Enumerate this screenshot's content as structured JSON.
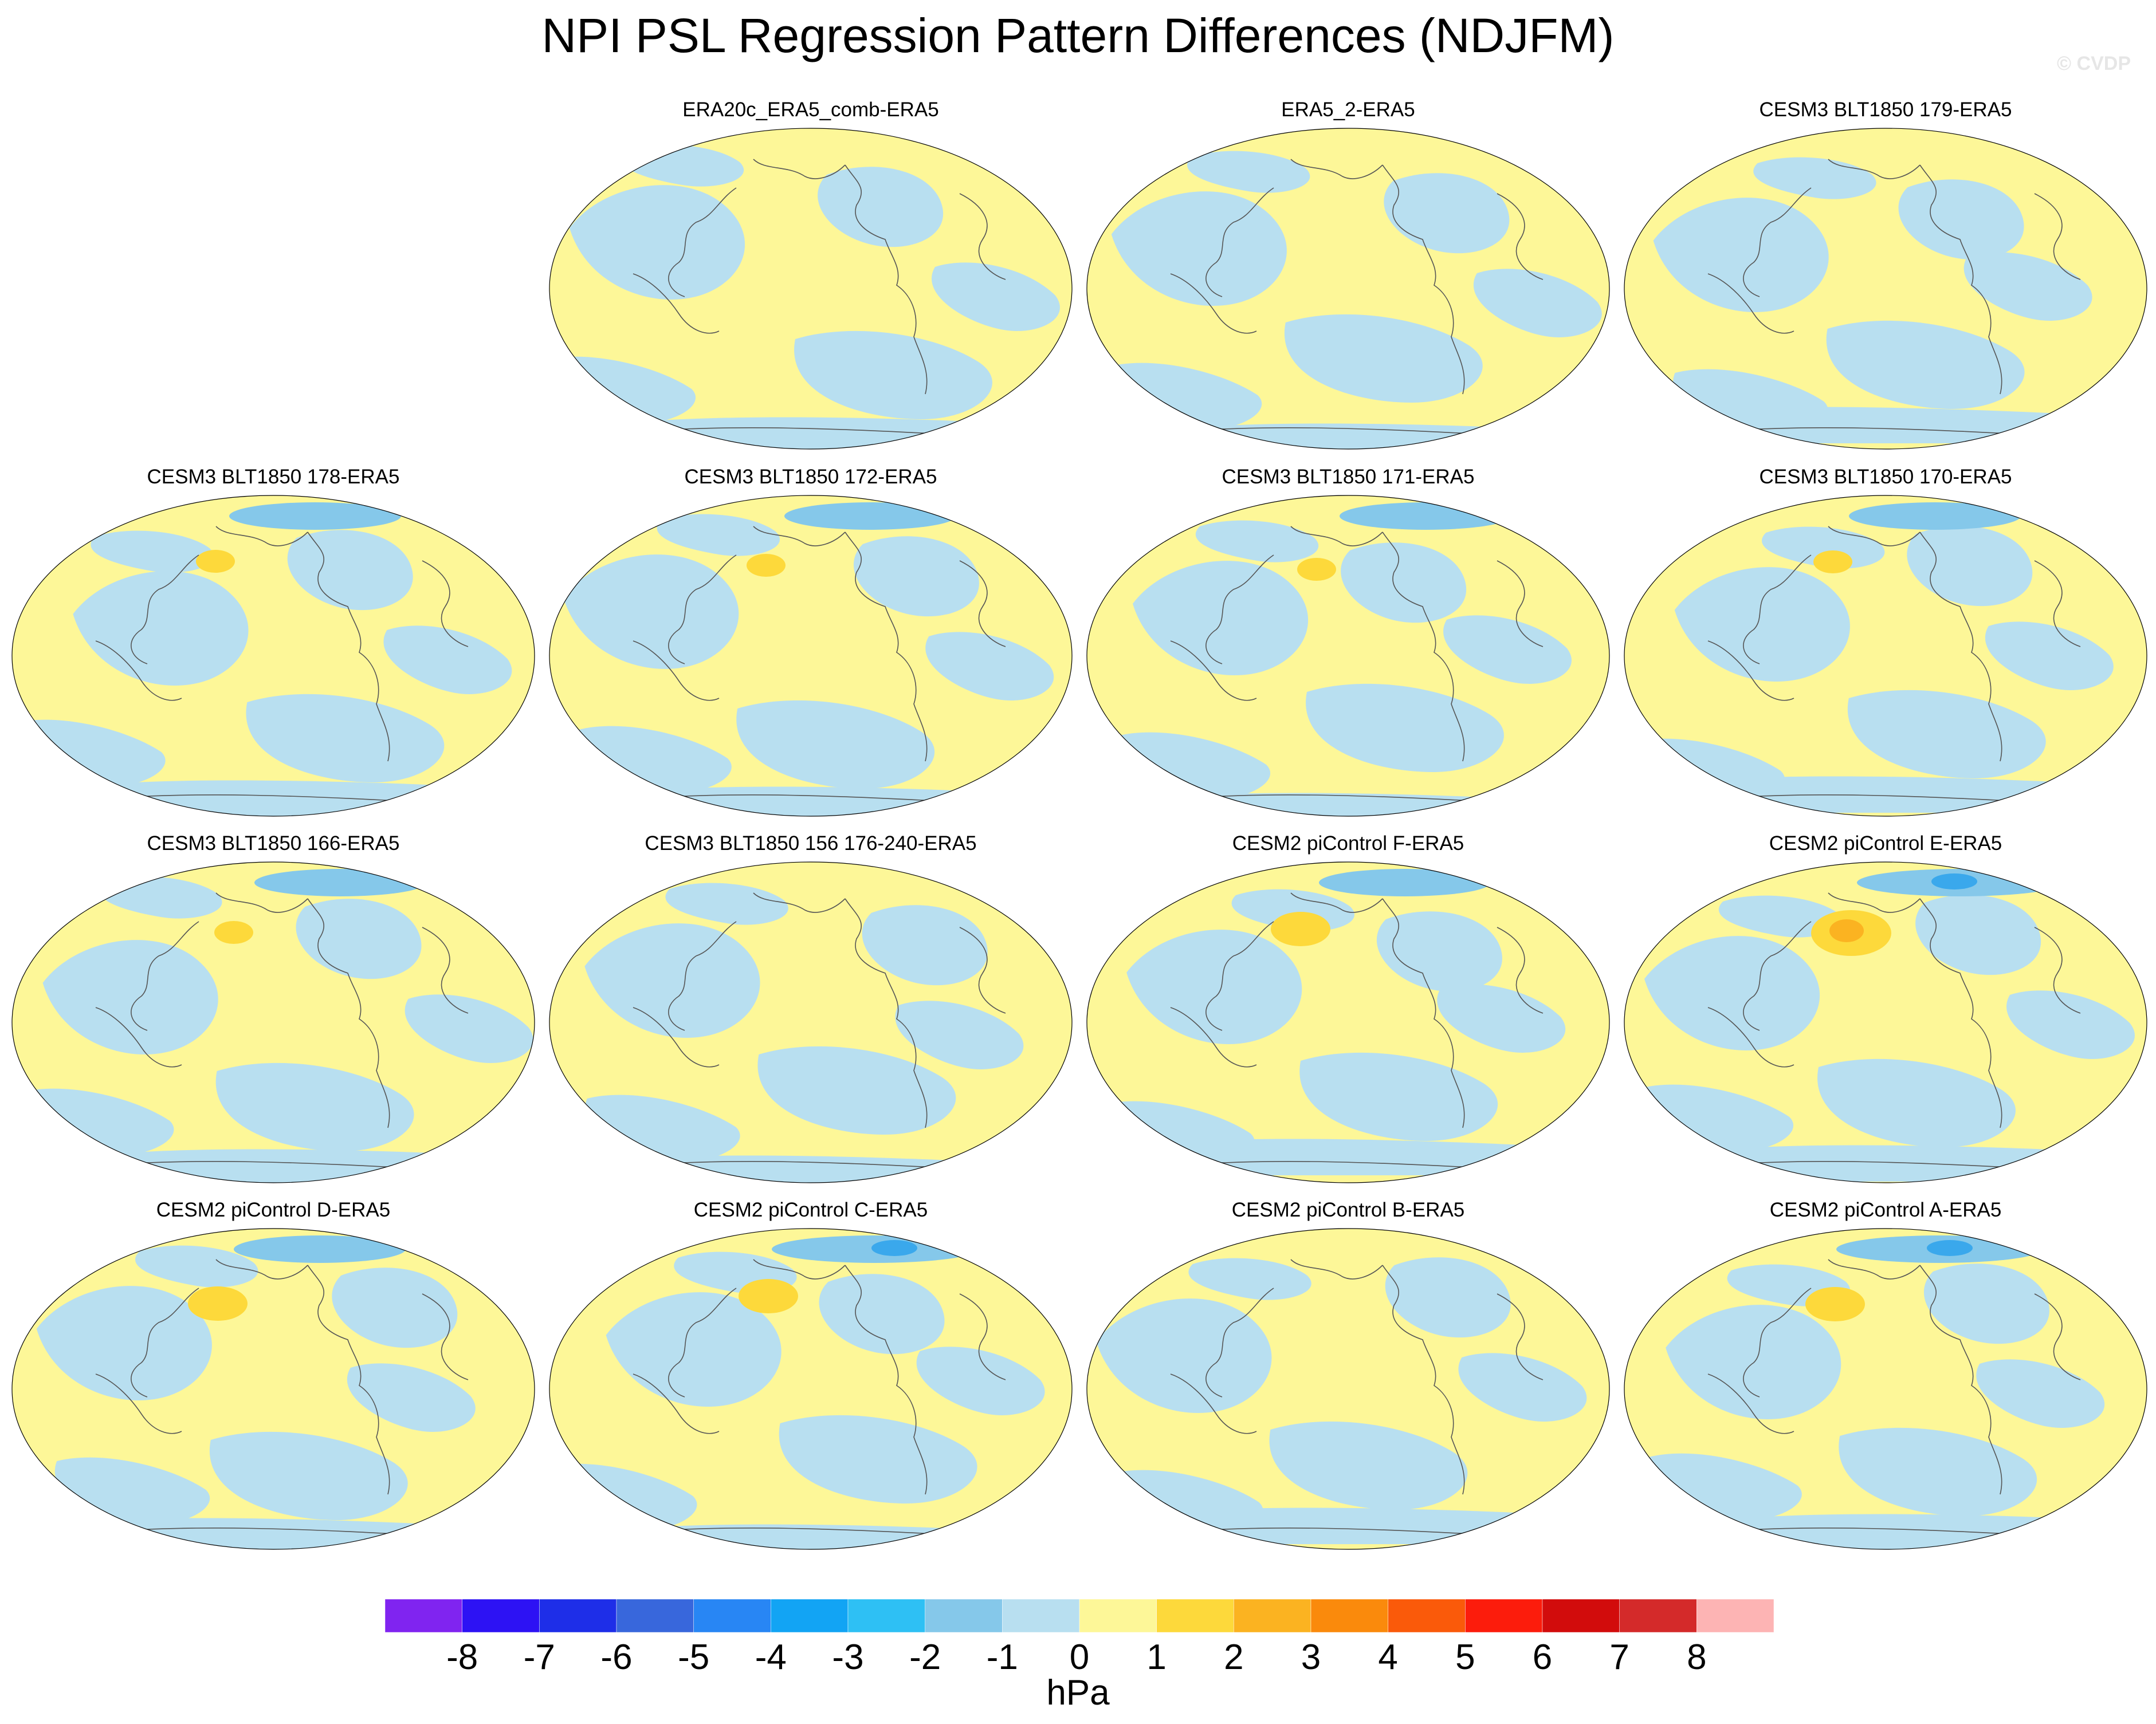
{
  "title": "NPI PSL Regression Pattern Differences (NDJFM)",
  "credit": "© CVDP",
  "colors": {
    "neg": "#b8dff0",
    "pos": "#fdf798",
    "neg2": "#85c8ea",
    "neg3": "#3aa8ec",
    "pos2": "#fdd93b",
    "pos3": "#fbb321",
    "coast": "#555555"
  },
  "panels": [
    {
      "title": "ERA20c_ERA5_comb-ERA5",
      "strength": 0,
      "warm_anom": 0
    },
    {
      "title": "ERA5_2-ERA5",
      "strength": 0,
      "warm_anom": 0
    },
    {
      "title": "CESM3 BLT1850 179-ERA5",
      "strength": 0,
      "warm_anom": 0
    },
    {
      "title": "CESM3 BLT1850 178-ERA5",
      "strength": 1,
      "warm_anom": 1
    },
    {
      "title": "CESM3 BLT1850 172-ERA5",
      "strength": 1,
      "warm_anom": 1
    },
    {
      "title": "CESM3 BLT1850 171-ERA5",
      "strength": 1,
      "warm_anom": 1
    },
    {
      "title": "CESM3 BLT1850 170-ERA5",
      "strength": 1,
      "warm_anom": 1
    },
    {
      "title": "CESM3 BLT1850 166-ERA5",
      "strength": 1,
      "warm_anom": 1
    },
    {
      "title": "CESM3 BLT1850 156 176-240-ERA5",
      "strength": 0,
      "warm_anom": 0
    },
    {
      "title": "CESM2 piControl F-ERA5",
      "strength": 1,
      "warm_anom": 2
    },
    {
      "title": "CESM2 piControl E-ERA5",
      "strength": 2,
      "warm_anom": 3
    },
    {
      "title": "CESM2 piControl D-ERA5",
      "strength": 1,
      "warm_anom": 2
    },
    {
      "title": "CESM2 piControl C-ERA5",
      "strength": 2,
      "warm_anom": 2
    },
    {
      "title": "CESM2 piControl B-ERA5",
      "strength": 0,
      "warm_anom": 0
    },
    {
      "title": "CESM2 piControl A-ERA5",
      "strength": 2,
      "warm_anom": 2
    }
  ],
  "colorbar": {
    "colors": [
      "#8024f0",
      "#2d12f4",
      "#1e2ee8",
      "#3867dc",
      "#2886f4",
      "#12a4f4",
      "#2ec0f4",
      "#85c8ea",
      "#b8dff0",
      "#fdf798",
      "#fdd93b",
      "#fbb321",
      "#fa8a0c",
      "#fa5a0a",
      "#fc1c0c",
      "#d20c0c",
      "#d42a2a",
      "#fdb4b4"
    ],
    "labels": [
      "-8",
      "-7",
      "-6",
      "-5",
      "-4",
      "-3",
      "-2",
      "-1",
      "0",
      "1",
      "2",
      "3",
      "4",
      "5",
      "6",
      "7",
      "8"
    ],
    "unit": "hPa"
  }
}
